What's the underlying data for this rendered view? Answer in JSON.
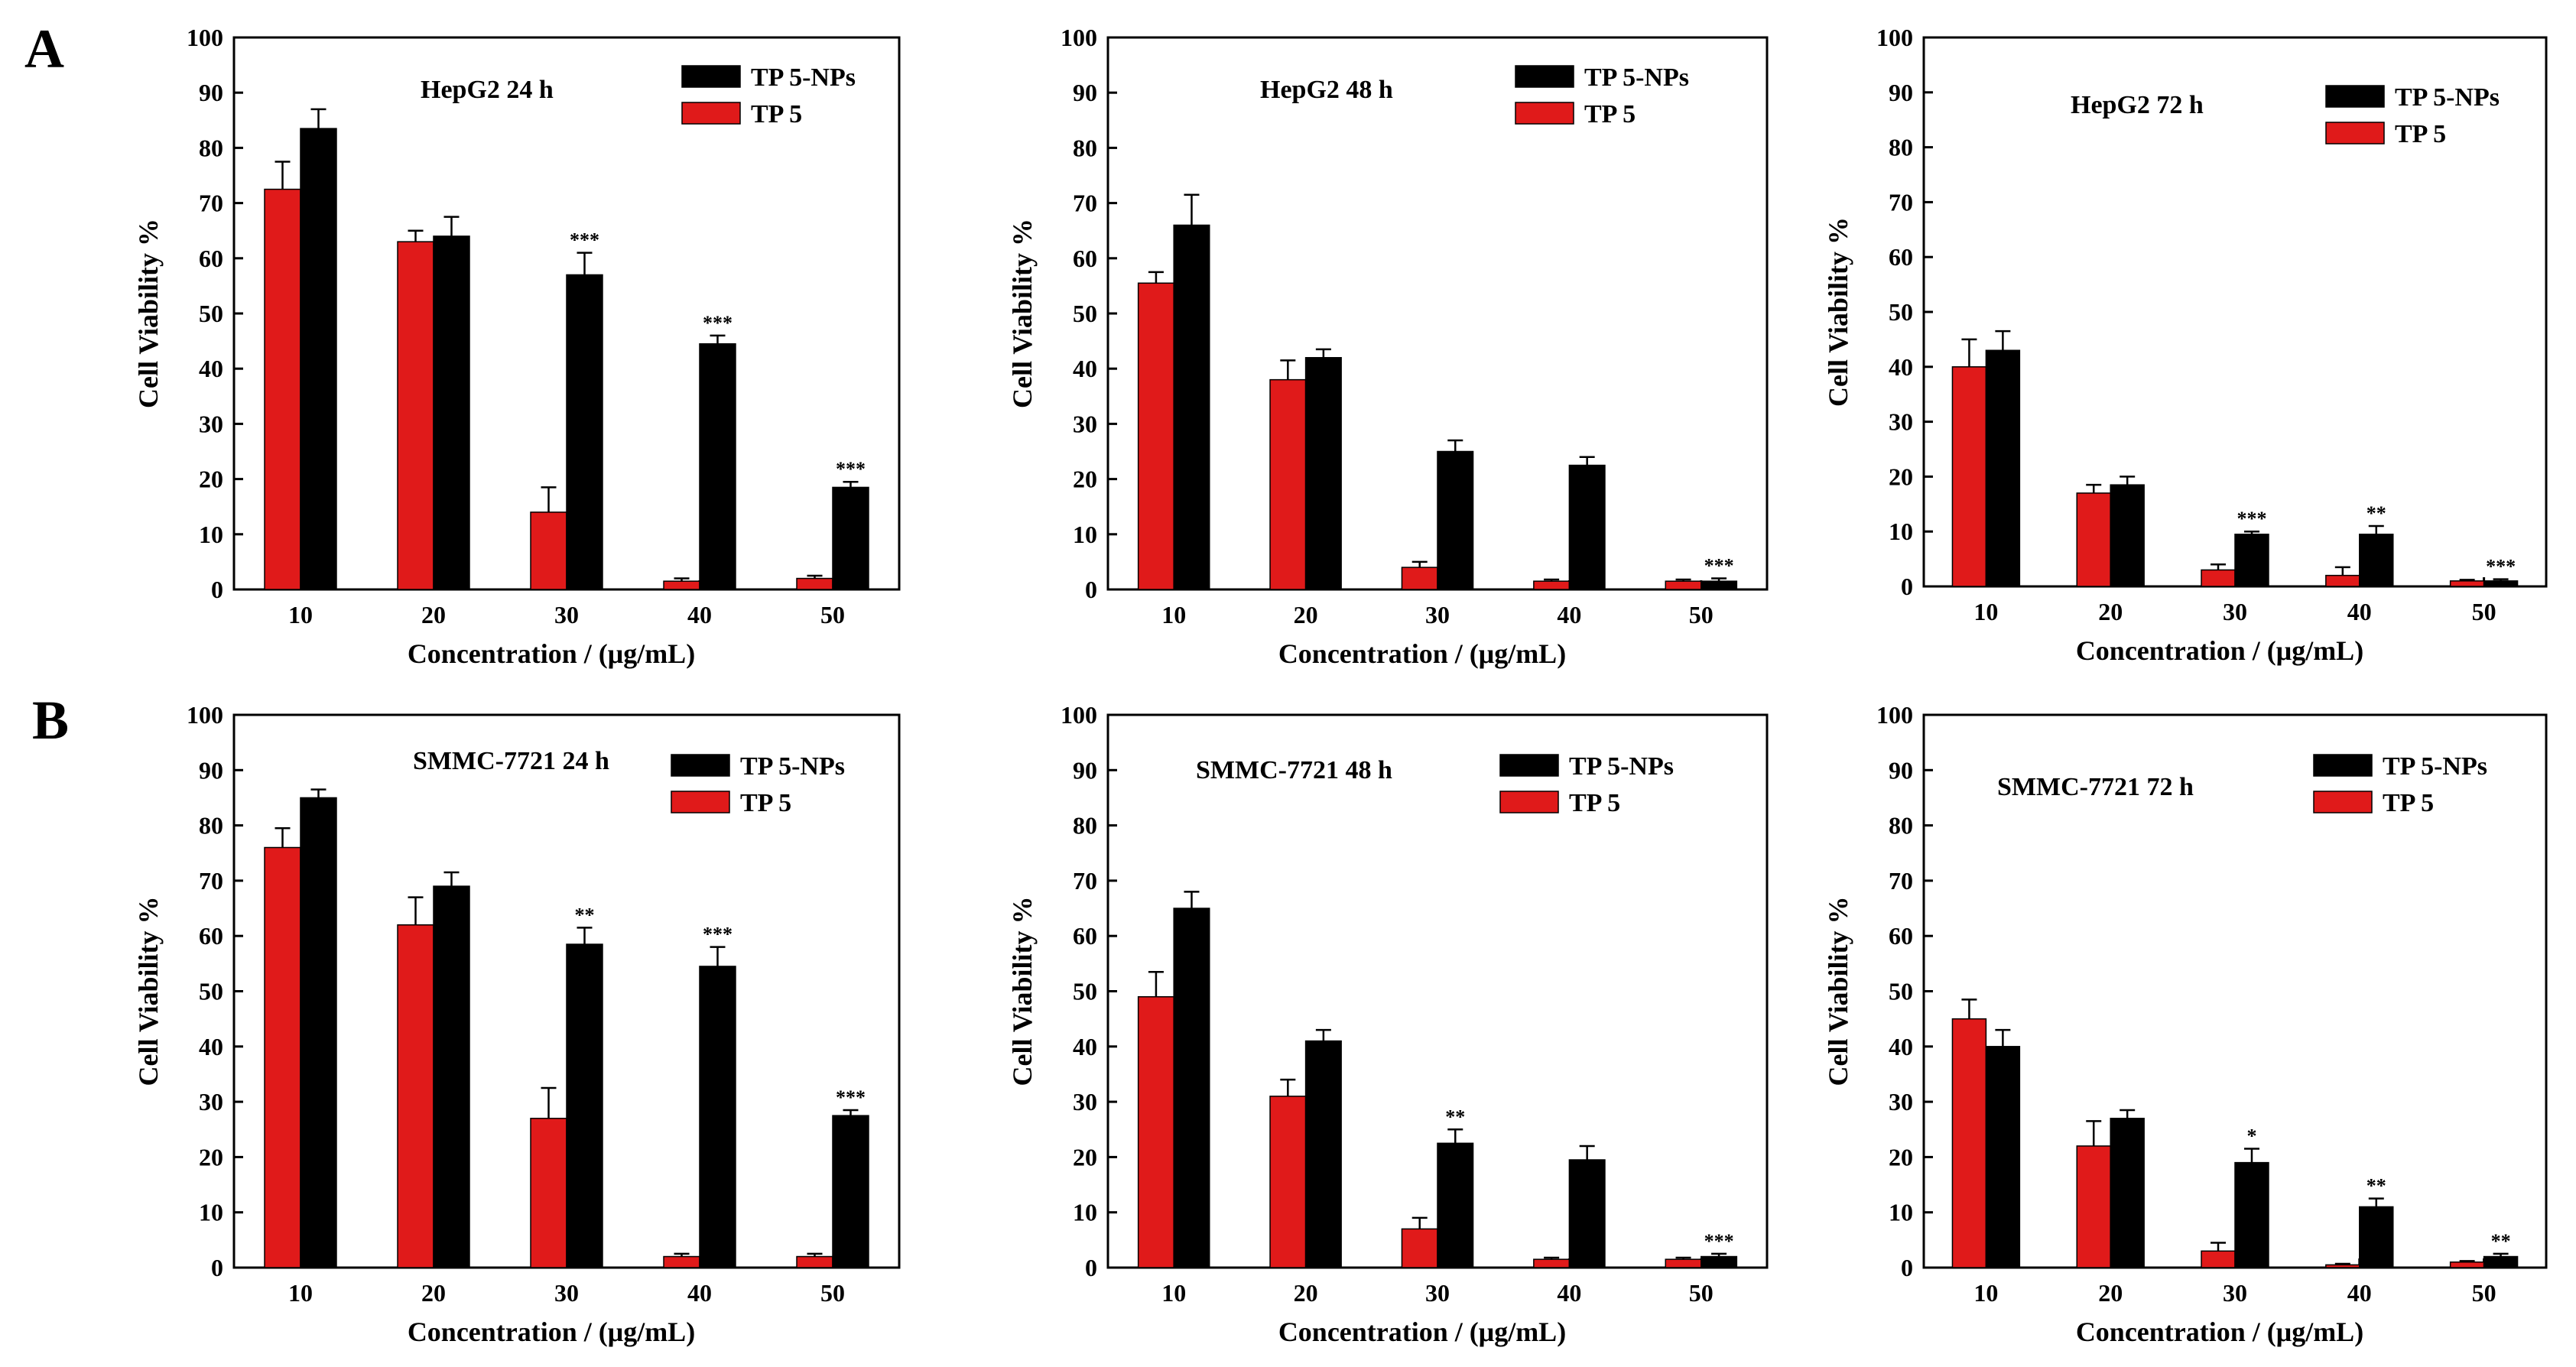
{
  "colors": {
    "tp5": "#e01a1a",
    "np": "#000000",
    "axis": "#000000",
    "error": "#000000"
  },
  "panel_labels": [
    "A",
    "B"
  ],
  "chart_data": [
    {
      "type": "bar",
      "panel": "A",
      "title": "HepG2 24 h",
      "xlabel": "Concentration / (μg/mL)",
      "ylabel": "Cell Viability %",
      "ylim": [
        0,
        100
      ],
      "yticks": [
        0,
        10,
        20,
        30,
        40,
        50,
        60,
        70,
        80,
        90,
        100
      ],
      "categories": [
        "10",
        "20",
        "30",
        "40",
        "50"
      ],
      "legend_position": "top-right",
      "series": [
        {
          "name": "TP 5-NPs",
          "color": "#000000",
          "values": [
            83.5,
            64,
            57,
            44.5,
            18.5
          ],
          "errors": [
            3.5,
            3.5,
            4,
            1.5,
            1
          ]
        },
        {
          "name": "TP 5",
          "color": "#e01a1a",
          "values": [
            72.5,
            63,
            14,
            1.5,
            2
          ],
          "errors": [
            5,
            2,
            4.5,
            0.5,
            0.5
          ]
        }
      ],
      "significance": [
        "",
        "",
        "***",
        "***",
        "***"
      ]
    },
    {
      "type": "bar",
      "panel": "A",
      "title": "HepG2 48 h",
      "xlabel": "Concentration / (μg/mL)",
      "ylabel": "Cell Viability %",
      "ylim": [
        0,
        100
      ],
      "yticks": [
        0,
        10,
        20,
        30,
        40,
        50,
        60,
        70,
        80,
        90,
        100
      ],
      "categories": [
        "10",
        "20",
        "30",
        "40",
        "50"
      ],
      "legend_position": "top-right",
      "series": [
        {
          "name": "TP 5-NPs",
          "color": "#000000",
          "values": [
            66,
            42,
            25,
            22.5,
            1.5
          ],
          "errors": [
            5.5,
            1.5,
            2,
            1.5,
            0.5
          ]
        },
        {
          "name": "TP 5",
          "color": "#e01a1a",
          "values": [
            55.5,
            38,
            4,
            1.5,
            1.5
          ],
          "errors": [
            2,
            3.5,
            1,
            0.3,
            0.3
          ]
        }
      ],
      "significance": [
        "",
        "",
        "",
        "",
        "***"
      ]
    },
    {
      "type": "bar",
      "panel": "A",
      "title": "HepG2 72 h",
      "xlabel": "Concentration / (μg/mL)",
      "ylabel": "Cell Viability %",
      "ylim": [
        0,
        100
      ],
      "yticks": [
        0,
        10,
        20,
        30,
        40,
        50,
        60,
        70,
        80,
        90,
        100
      ],
      "categories": [
        "10",
        "20",
        "30",
        "40",
        "50"
      ],
      "legend_position": "top-right",
      "series": [
        {
          "name": "TP 5-NPs",
          "color": "#000000",
          "values": [
            43,
            18.5,
            9.5,
            9.5,
            1
          ],
          "errors": [
            3.5,
            1.5,
            0.5,
            1.5,
            0.3
          ]
        },
        {
          "name": "TP 5",
          "color": "#e01a1a",
          "values": [
            40,
            17,
            3,
            2,
            1
          ],
          "errors": [
            5,
            1.5,
            1,
            1.5,
            0.2
          ]
        }
      ],
      "significance": [
        "",
        "",
        "***",
        "**",
        "***"
      ]
    },
    {
      "type": "bar",
      "panel": "B",
      "title": "SMMC-7721 24 h",
      "xlabel": "Concentration / (μg/mL)",
      "ylabel": "Cell Viability %",
      "ylim": [
        0,
        100
      ],
      "yticks": [
        0,
        10,
        20,
        30,
        40,
        50,
        60,
        70,
        80,
        90,
        100
      ],
      "categories": [
        "10",
        "20",
        "30",
        "40",
        "50"
      ],
      "legend_position": "top-right",
      "series": [
        {
          "name": "TP 5-NPs",
          "color": "#000000",
          "values": [
            85,
            69,
            58.5,
            54.5,
            27.5
          ],
          "errors": [
            1.5,
            2.5,
            3,
            3.5,
            1
          ]
        },
        {
          "name": "TP 5",
          "color": "#e01a1a",
          "values": [
            76,
            62,
            27,
            2,
            2
          ],
          "errors": [
            3.5,
            5,
            5.5,
            0.5,
            0.5
          ]
        }
      ],
      "significance": [
        "",
        "",
        "**",
        "***",
        "***"
      ]
    },
    {
      "type": "bar",
      "panel": "B",
      "title": "SMMC-7721 48 h",
      "xlabel": "Concentration / (μg/mL)",
      "ylabel": "Cell Viability %",
      "ylim": [
        0,
        100
      ],
      "yticks": [
        0,
        10,
        20,
        30,
        40,
        50,
        60,
        70,
        80,
        90,
        100
      ],
      "categories": [
        "10",
        "20",
        "30",
        "40",
        "50"
      ],
      "legend_position": "top-right",
      "series": [
        {
          "name": "TP 5-NPs",
          "color": "#000000",
          "values": [
            65,
            41,
            22.5,
            19.5,
            2
          ],
          "errors": [
            3,
            2,
            2.5,
            2.5,
            0.5
          ]
        },
        {
          "name": "TP 5",
          "color": "#e01a1a",
          "values": [
            49,
            31,
            7,
            1.5,
            1.5
          ],
          "errors": [
            4.5,
            3,
            2,
            0.3,
            0.3
          ]
        }
      ],
      "significance": [
        "",
        "",
        "**",
        "",
        "***"
      ]
    },
    {
      "type": "bar",
      "panel": "B",
      "title": "SMMC-7721 72 h",
      "xlabel": "Concentration / (μg/mL)",
      "ylabel": "Cell Viability %",
      "ylim": [
        0,
        100
      ],
      "yticks": [
        0,
        10,
        20,
        30,
        40,
        50,
        60,
        70,
        80,
        90,
        100
      ],
      "categories": [
        "10",
        "20",
        "30",
        "40",
        "50"
      ],
      "legend_position": "top-right",
      "series": [
        {
          "name": "TP 5-NPs",
          "color": "#000000",
          "values": [
            40,
            27,
            19,
            11,
            2
          ],
          "errors": [
            3,
            1.5,
            2.5,
            1.5,
            0.5
          ]
        },
        {
          "name": "TP 5",
          "color": "#e01a1a",
          "values": [
            45,
            22,
            3,
            0.5,
            1
          ],
          "errors": [
            3.5,
            4.5,
            1.5,
            0.2,
            0.2
          ]
        }
      ],
      "significance": [
        "",
        "",
        "*",
        "**",
        "**"
      ]
    }
  ]
}
